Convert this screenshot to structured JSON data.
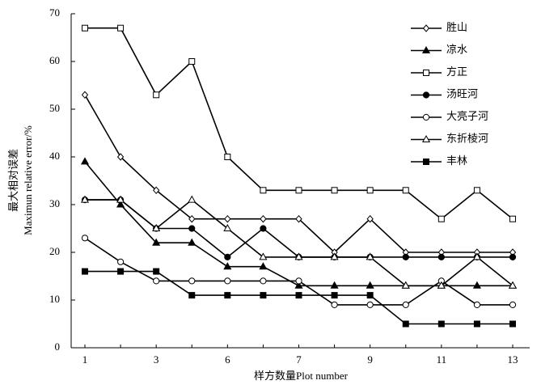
{
  "chart_data": {
    "type": "line",
    "x_label": "样方数量Plot number",
    "y_label": [
      "最大相对误差",
      "Maximun relative error/%"
    ],
    "categories": [
      "1",
      null,
      "3",
      null,
      "6",
      null,
      "7",
      null,
      "9",
      null,
      "11",
      null,
      "13"
    ],
    "ylim": [
      0,
      70
    ],
    "yticks": [
      0,
      10,
      20,
      30,
      40,
      50,
      60,
      70
    ],
    "legend": "upper right",
    "series": [
      {
        "name": "胜山",
        "color": "#000000",
        "marker": "diamond-open",
        "values": [
          53,
          40,
          33,
          27,
          27,
          27,
          27,
          20,
          27,
          20,
          20,
          20,
          20
        ]
      },
      {
        "name": "凉水",
        "color": "#000000",
        "marker": "triangle-filled",
        "values": [
          39,
          30,
          22,
          22,
          17,
          17,
          13,
          13,
          13,
          13,
          13,
          13,
          13
        ]
      },
      {
        "name": "方正",
        "color": "#000000",
        "marker": "square-open",
        "values": [
          67,
          67,
          53,
          60,
          40,
          33,
          33,
          33,
          33,
          33,
          27,
          33,
          27
        ]
      },
      {
        "name": "汤旺河",
        "color": "#000000",
        "marker": "circle-filled",
        "values": [
          31,
          31,
          25,
          25,
          19,
          25,
          19,
          19,
          19,
          19,
          19,
          19,
          19
        ]
      },
      {
        "name": "大亮子河",
        "color": "#000000",
        "marker": "circle-open",
        "values": [
          23,
          18,
          14,
          14,
          14,
          14,
          14,
          9,
          9,
          9,
          14,
          9,
          9
        ]
      },
      {
        "name": "东折棱河",
        "color": "#000000",
        "marker": "triangle-open",
        "values": [
          31,
          31,
          25,
          31,
          25,
          19,
          19,
          19,
          19,
          13,
          13,
          19,
          13
        ]
      },
      {
        "name": "丰林",
        "color": "#000000",
        "marker": "square-filled",
        "values": [
          16,
          16,
          16,
          11,
          11,
          11,
          11,
          11,
          11,
          5,
          5,
          5,
          5
        ]
      }
    ]
  }
}
